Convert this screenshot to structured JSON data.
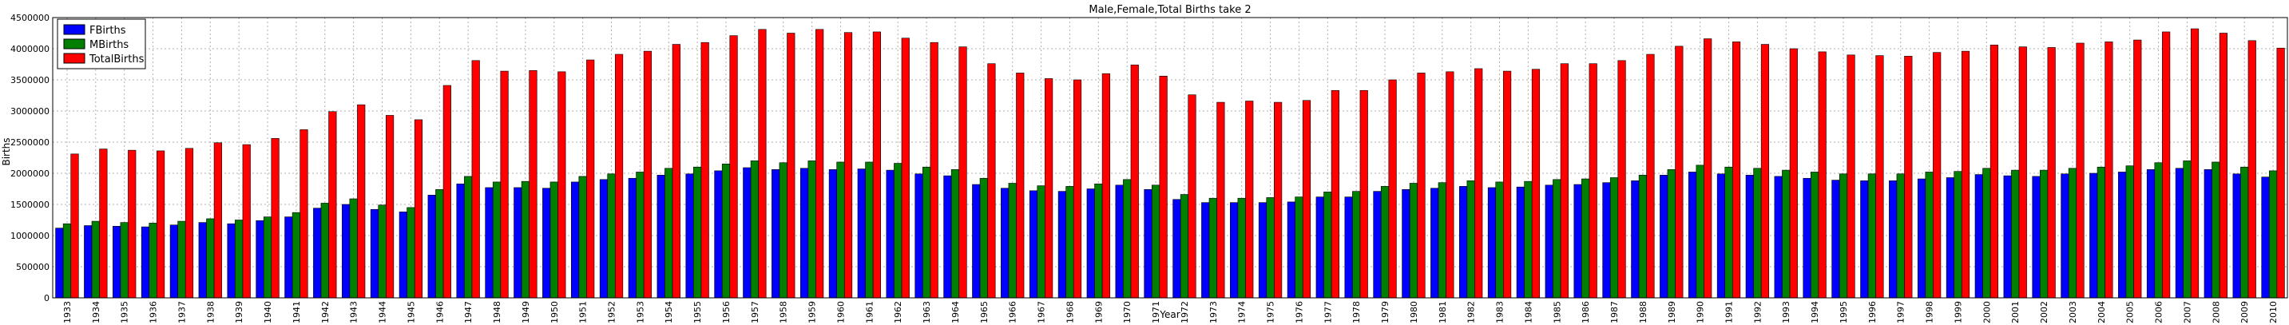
{
  "chart_data": {
    "type": "bar",
    "title": "Male,Female,Total Births take 2",
    "xlabel": "Year",
    "ylabel": "Births",
    "ylim": [
      0,
      4500000
    ],
    "yticks": [
      "0",
      "500000",
      "1000000",
      "1500000",
      "2000000",
      "2500000",
      "3000000",
      "3500000",
      "4000000",
      "4500000"
    ],
    "grid": true,
    "legend_position": "top-left",
    "categories": [
      "1933",
      "1934",
      "1935",
      "1936",
      "1937",
      "1938",
      "1939",
      "1940",
      "1941",
      "1942",
      "1943",
      "1944",
      "1945",
      "1946",
      "1947",
      "1948",
      "1949",
      "1950",
      "1951",
      "1952",
      "1953",
      "1954",
      "1955",
      "1956",
      "1957",
      "1958",
      "1959",
      "1960",
      "1961",
      "1962",
      "1963",
      "1964",
      "1965",
      "1966",
      "1967",
      "1968",
      "1969",
      "1970",
      "1971",
      "1972",
      "1973",
      "1974",
      "1975",
      "1976",
      "1977",
      "1978",
      "1979",
      "1980",
      "1981",
      "1982",
      "1983",
      "1984",
      "1985",
      "1986",
      "1987",
      "1988",
      "1989",
      "1990",
      "1991",
      "1992",
      "1993",
      "1994",
      "1995",
      "1996",
      "1997",
      "1998",
      "1999",
      "2000",
      "2001",
      "2002",
      "2003",
      "2004",
      "2005",
      "2006",
      "2007",
      "2008",
      "2009",
      "2010"
    ],
    "series": [
      {
        "name": "FBirths",
        "color": "#0000ff",
        "values": [
          1120000,
          1160000,
          1150000,
          1140000,
          1170000,
          1210000,
          1190000,
          1240000,
          1300000,
          1440000,
          1500000,
          1420000,
          1380000,
          1650000,
          1830000,
          1770000,
          1770000,
          1760000,
          1860000,
          1900000,
          1920000,
          1970000,
          1990000,
          2040000,
          2090000,
          2060000,
          2080000,
          2060000,
          2070000,
          2050000,
          1990000,
          1960000,
          1820000,
          1760000,
          1720000,
          1710000,
          1750000,
          1810000,
          1740000,
          1580000,
          1530000,
          1530000,
          1530000,
          1540000,
          1620000,
          1620000,
          1710000,
          1740000,
          1760000,
          1790000,
          1770000,
          1780000,
          1810000,
          1820000,
          1850000,
          1880000,
          1970000,
          2020000,
          1990000,
          1970000,
          1950000,
          1920000,
          1890000,
          1880000,
          1880000,
          1910000,
          1930000,
          1980000,
          1960000,
          1950000,
          1990000,
          2000000,
          2020000,
          2060000,
          2080000,
          2060000,
          1990000,
          1940000
        ]
      },
      {
        "name": "MBirths",
        "color": "#007f00",
        "values": [
          1190000,
          1230000,
          1210000,
          1200000,
          1230000,
          1270000,
          1250000,
          1300000,
          1370000,
          1520000,
          1590000,
          1490000,
          1450000,
          1740000,
          1950000,
          1860000,
          1870000,
          1860000,
          1950000,
          1990000,
          2020000,
          2080000,
          2100000,
          2150000,
          2200000,
          2170000,
          2200000,
          2180000,
          2180000,
          2160000,
          2100000,
          2060000,
          1920000,
          1840000,
          1800000,
          1790000,
          1830000,
          1900000,
          1810000,
          1660000,
          1600000,
          1600000,
          1610000,
          1620000,
          1700000,
          1710000,
          1790000,
          1840000,
          1850000,
          1880000,
          1860000,
          1870000,
          1900000,
          1910000,
          1930000,
          1970000,
          2060000,
          2130000,
          2100000,
          2080000,
          2050000,
          2020000,
          1990000,
          1990000,
          1990000,
          2020000,
          2030000,
          2080000,
          2050000,
          2050000,
          2080000,
          2100000,
          2120000,
          2170000,
          2200000,
          2180000,
          2100000,
          2040000
        ]
      },
      {
        "name": "TotalBirths",
        "color": "#ff0000",
        "values": [
          2310000,
          2390000,
          2370000,
          2360000,
          2400000,
          2490000,
          2460000,
          2560000,
          2700000,
          2990000,
          3100000,
          2930000,
          2860000,
          3410000,
          3810000,
          3640000,
          3650000,
          3630000,
          3820000,
          3910000,
          3960000,
          4070000,
          4100000,
          4210000,
          4310000,
          4250000,
          4310000,
          4260000,
          4270000,
          4170000,
          4100000,
          4030000,
          3760000,
          3610000,
          3520000,
          3500000,
          3600000,
          3740000,
          3560000,
          3260000,
          3140000,
          3160000,
          3140000,
          3170000,
          3330000,
          3330000,
          3500000,
          3610000,
          3630000,
          3680000,
          3640000,
          3670000,
          3760000,
          3760000,
          3810000,
          3910000,
          4040000,
          4160000,
          4110000,
          4070000,
          4000000,
          3950000,
          3900000,
          3890000,
          3880000,
          3940000,
          3960000,
          4060000,
          4030000,
          4020000,
          4090000,
          4110000,
          4140000,
          4270000,
          4320000,
          4250000,
          4130000,
          4010000
        ]
      }
    ]
  }
}
